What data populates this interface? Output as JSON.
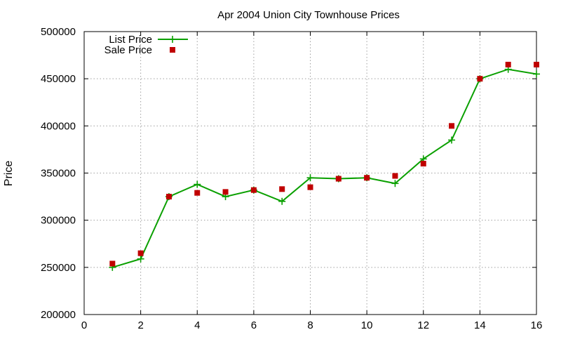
{
  "chart_data": {
    "type": "line",
    "title": "Apr 2004 Union City Townhouse Prices",
    "xlabel": "",
    "ylabel": "Price",
    "xlim": [
      0,
      16
    ],
    "ylim": [
      200000,
      500000
    ],
    "xticks": [
      0,
      2,
      4,
      6,
      8,
      10,
      12,
      14,
      16
    ],
    "yticks": [
      200000,
      250000,
      300000,
      350000,
      400000,
      450000,
      500000
    ],
    "grid": true,
    "legend_position": "top-left",
    "series": [
      {
        "name": "List Price",
        "style": "line-with-plus-markers",
        "color": "#0aa000",
        "x": [
          1,
          2,
          3,
          4,
          5,
          6,
          7,
          8,
          9,
          10,
          11,
          12,
          13,
          14,
          15,
          16
        ],
        "y": [
          250000,
          259000,
          325000,
          338000,
          325000,
          332000,
          320000,
          345000,
          344000,
          345000,
          339000,
          365000,
          385000,
          450000,
          460000,
          455000
        ]
      },
      {
        "name": "Sale Price",
        "style": "square-markers",
        "color": "#c00000",
        "x": [
          1,
          2,
          3,
          4,
          5,
          6,
          7,
          8,
          9,
          10,
          11,
          12,
          13,
          14,
          15,
          16
        ],
        "y": [
          254000,
          265000,
          325000,
          329000,
          330000,
          332000,
          333000,
          335000,
          344000,
          345000,
          347000,
          360000,
          400000,
          450000,
          465000,
          465000
        ]
      }
    ]
  }
}
